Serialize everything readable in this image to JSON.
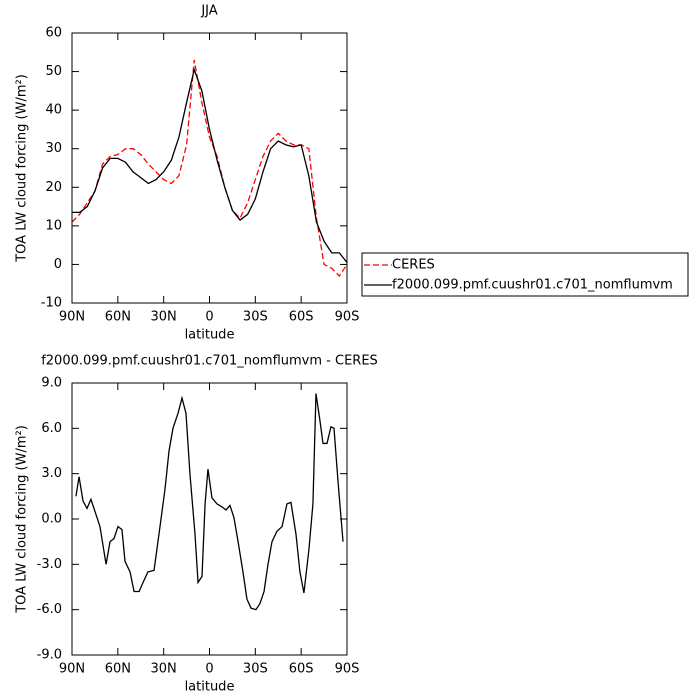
{
  "chart_data": [
    {
      "type": "line",
      "title": "JJA",
      "xlabel": "latitude",
      "ylabel": "TOA LW cloud forcing (W/m²)",
      "xlim": [
        90,
        -90
      ],
      "xticks": [
        {
          "value": 90,
          "label": "90N"
        },
        {
          "value": 60,
          "label": "60N"
        },
        {
          "value": 30,
          "label": "30N"
        },
        0,
        {
          "value": -30,
          "label": "30S"
        },
        {
          "value": -60,
          "label": "60S"
        },
        {
          "value": -90,
          "label": "90S"
        }
      ],
      "ylim": [
        -10,
        60
      ],
      "yticks": [
        -10,
        0,
        10,
        20,
        30,
        40,
        50,
        60
      ],
      "legend": "right",
      "series": [
        {
          "name": "CERES",
          "color": "#ff0000",
          "dash": true,
          "x": [
            90,
            85,
            80,
            75,
            70,
            65,
            60,
            55,
            50,
            45,
            40,
            35,
            30,
            25,
            20,
            15,
            10,
            5,
            0,
            -5,
            -10,
            -15,
            -20,
            -25,
            -30,
            -35,
            -40,
            -45,
            -50,
            -55,
            -60,
            -65,
            -70,
            -75,
            -80,
            -85,
            -90
          ],
          "values": [
            11,
            13,
            16,
            19,
            26,
            28,
            28.5,
            30,
            30,
            28.5,
            26,
            24,
            22,
            21,
            23,
            31,
            53,
            42,
            33,
            28,
            20,
            14,
            12,
            16,
            22,
            28,
            32,
            34,
            32,
            31,
            31,
            30,
            12,
            0,
            -1,
            -3,
            0
          ]
        },
        {
          "name": "f2000.099.pmf.cuushr01.c701_nomflumvm",
          "color": "#000000",
          "dash": false,
          "x": [
            90,
            85,
            80,
            75,
            70,
            65,
            60,
            55,
            50,
            45,
            40,
            35,
            30,
            25,
            20,
            15,
            10,
            5,
            0,
            -5,
            -10,
            -15,
            -20,
            -25,
            -30,
            -35,
            -40,
            -45,
            -50,
            -55,
            -60,
            -65,
            -70,
            -75,
            -80,
            -85,
            -90
          ],
          "values": [
            13.5,
            13.5,
            15,
            19,
            25,
            27.5,
            27.5,
            26.5,
            24,
            22.5,
            21,
            22,
            24,
            27,
            33,
            42,
            50.5,
            45,
            35,
            27,
            20,
            14,
            11.5,
            13,
            17,
            24,
            30,
            32,
            31,
            30.5,
            31,
            23,
            11,
            6,
            3,
            3,
            0.5
          ]
        }
      ]
    },
    {
      "type": "line",
      "title": "f2000.099.pmf.cuushr01.c701_nomflumvm - CERES",
      "xlabel": "latitude",
      "ylabel": "TOA LW cloud forcing (W/m²)",
      "xlim": [
        90,
        -90
      ],
      "xticks": [
        {
          "value": 90,
          "label": "90N"
        },
        {
          "value": 60,
          "label": "60N"
        },
        {
          "value": 30,
          "label": "30N"
        },
        0,
        {
          "value": -30,
          "label": "30S"
        },
        {
          "value": -60,
          "label": "60S"
        },
        {
          "value": -90,
          "label": "90S"
        }
      ],
      "ylim": [
        -9,
        9
      ],
      "yticks": [
        {
          "value": -9,
          "label": "-9.0"
        },
        {
          "value": -6,
          "label": "-6.0"
        },
        {
          "value": -3,
          "label": "-3.0"
        },
        {
          "value": 0,
          "label": "0.0"
        },
        {
          "value": 3,
          "label": "3.0"
        },
        {
          "value": 6,
          "label": "6.0"
        },
        {
          "value": 9,
          "label": "9.0"
        }
      ],
      "series": [
        {
          "color": "#000000",
          "dash": false,
          "x": [
            87.4,
            85.4,
            82.8,
            80.2,
            77.6,
            74.3,
            71.7,
            67.7,
            65.1,
            62.5,
            59.9,
            57.3,
            55.3,
            52,
            49.4,
            46.1,
            43.5,
            40.3,
            36.3,
            32.4,
            29.1,
            26.5,
            23.9,
            20.6,
            18,
            15.4,
            12.8,
            9.5,
            7.5,
            4.9,
            2.9,
            1,
            -1.6,
            -4.9,
            -8.2,
            -10.8,
            -13.4,
            -16,
            -18.7,
            -21.9,
            -24.5,
            -27.2,
            -30.4,
            -33,
            -35.7,
            -38.3,
            -40.9,
            -44.2,
            -47.5,
            -50.7,
            -53.3,
            -56.6,
            -59.2,
            -61.8,
            -65.1,
            -67.7,
            -69.7,
            -72.3,
            -74.3,
            -76.9,
            -79.5,
            -81.5,
            -84.1,
            -87.4
          ],
          "values": [
            1.5,
            2.8,
            1.2,
            0.7,
            1.3,
            0.3,
            -0.5,
            -3.0,
            -1.5,
            -1.3,
            -0.5,
            -0.7,
            -2.8,
            -3.5,
            -4.8,
            -4.8,
            -4.2,
            -3.5,
            -3.4,
            -0.5,
            2,
            4.5,
            6,
            7,
            8,
            7,
            3,
            -1,
            -4.2,
            -3.8,
            1,
            3.3,
            1.4,
            1.0,
            0.8,
            0.6,
            0.9,
            0.1,
            -1.5,
            -3.5,
            -5.3,
            -5.9,
            -6.0,
            -5.6,
            -4.8,
            -3.0,
            -1.5,
            -0.8,
            -0.5,
            1.0,
            1.1,
            -1,
            -3.5,
            -4.9,
            -2,
            1,
            8.3,
            6.5,
            5,
            5,
            6.1,
            6,
            2.5,
            -1.5
          ]
        }
      ]
    }
  ]
}
